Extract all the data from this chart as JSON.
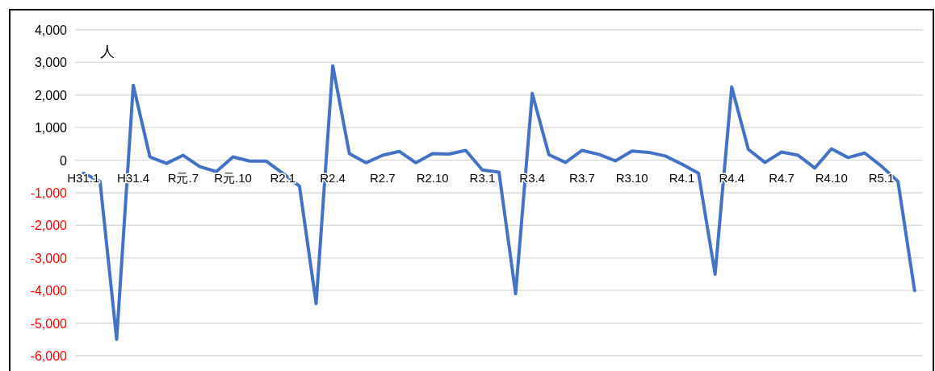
{
  "chart_data": {
    "type": "line",
    "ylabel": "人",
    "categories": [
      "H31.1",
      null,
      null,
      "H31.4",
      null,
      null,
      "R元.7",
      null,
      null,
      "R元.10",
      null,
      null,
      "R2.1",
      null,
      null,
      "R2.4",
      null,
      null,
      "R2.7",
      null,
      null,
      "R2.10",
      null,
      null,
      "R3.1",
      null,
      null,
      "R3.4",
      null,
      null,
      "R3.7",
      null,
      null,
      "R3.10",
      null,
      null,
      "R4.1",
      null,
      null,
      "R4.4",
      null,
      null,
      "R4.7",
      null,
      null,
      "R4.10",
      null,
      null,
      "R5.1",
      null,
      null
    ],
    "series": [
      {
        "color": "#4472c4",
        "values": [
          -400,
          -650,
          -5500,
          2300,
          100,
          -100,
          150,
          -200,
          -350,
          100,
          -30,
          -30,
          -400,
          -800,
          -4400,
          2900,
          200,
          -80,
          150,
          270,
          -80,
          200,
          190,
          300,
          -300,
          -370,
          -4100,
          2050,
          170,
          -70,
          300,
          180,
          -20,
          280,
          240,
          130,
          -120,
          -400,
          -3500,
          2250,
          330,
          -70,
          250,
          150,
          -240,
          350,
          80,
          220,
          -180,
          -650,
          -4000
        ]
      }
    ],
    "ylim": [
      -6000,
      4000
    ],
    "yticks": [
      {
        "value": -6000,
        "label": "-6,000"
      },
      {
        "value": -5000,
        "label": "-5,000"
      },
      {
        "value": -4000,
        "label": "-4,000"
      },
      {
        "value": -3000,
        "label": "-3,000"
      },
      {
        "value": -2000,
        "label": "-2,000"
      },
      {
        "value": -1000,
        "label": "-1,000"
      },
      0,
      {
        "value": 1000,
        "label": "1,000"
      },
      {
        "value": 2000,
        "label": "2,000"
      },
      {
        "value": 3000,
        "label": "3,000"
      },
      {
        "value": 4000,
        "label": "4,000"
      }
    ],
    "grid": "y",
    "marker": "none",
    "line_style": "solid"
  }
}
